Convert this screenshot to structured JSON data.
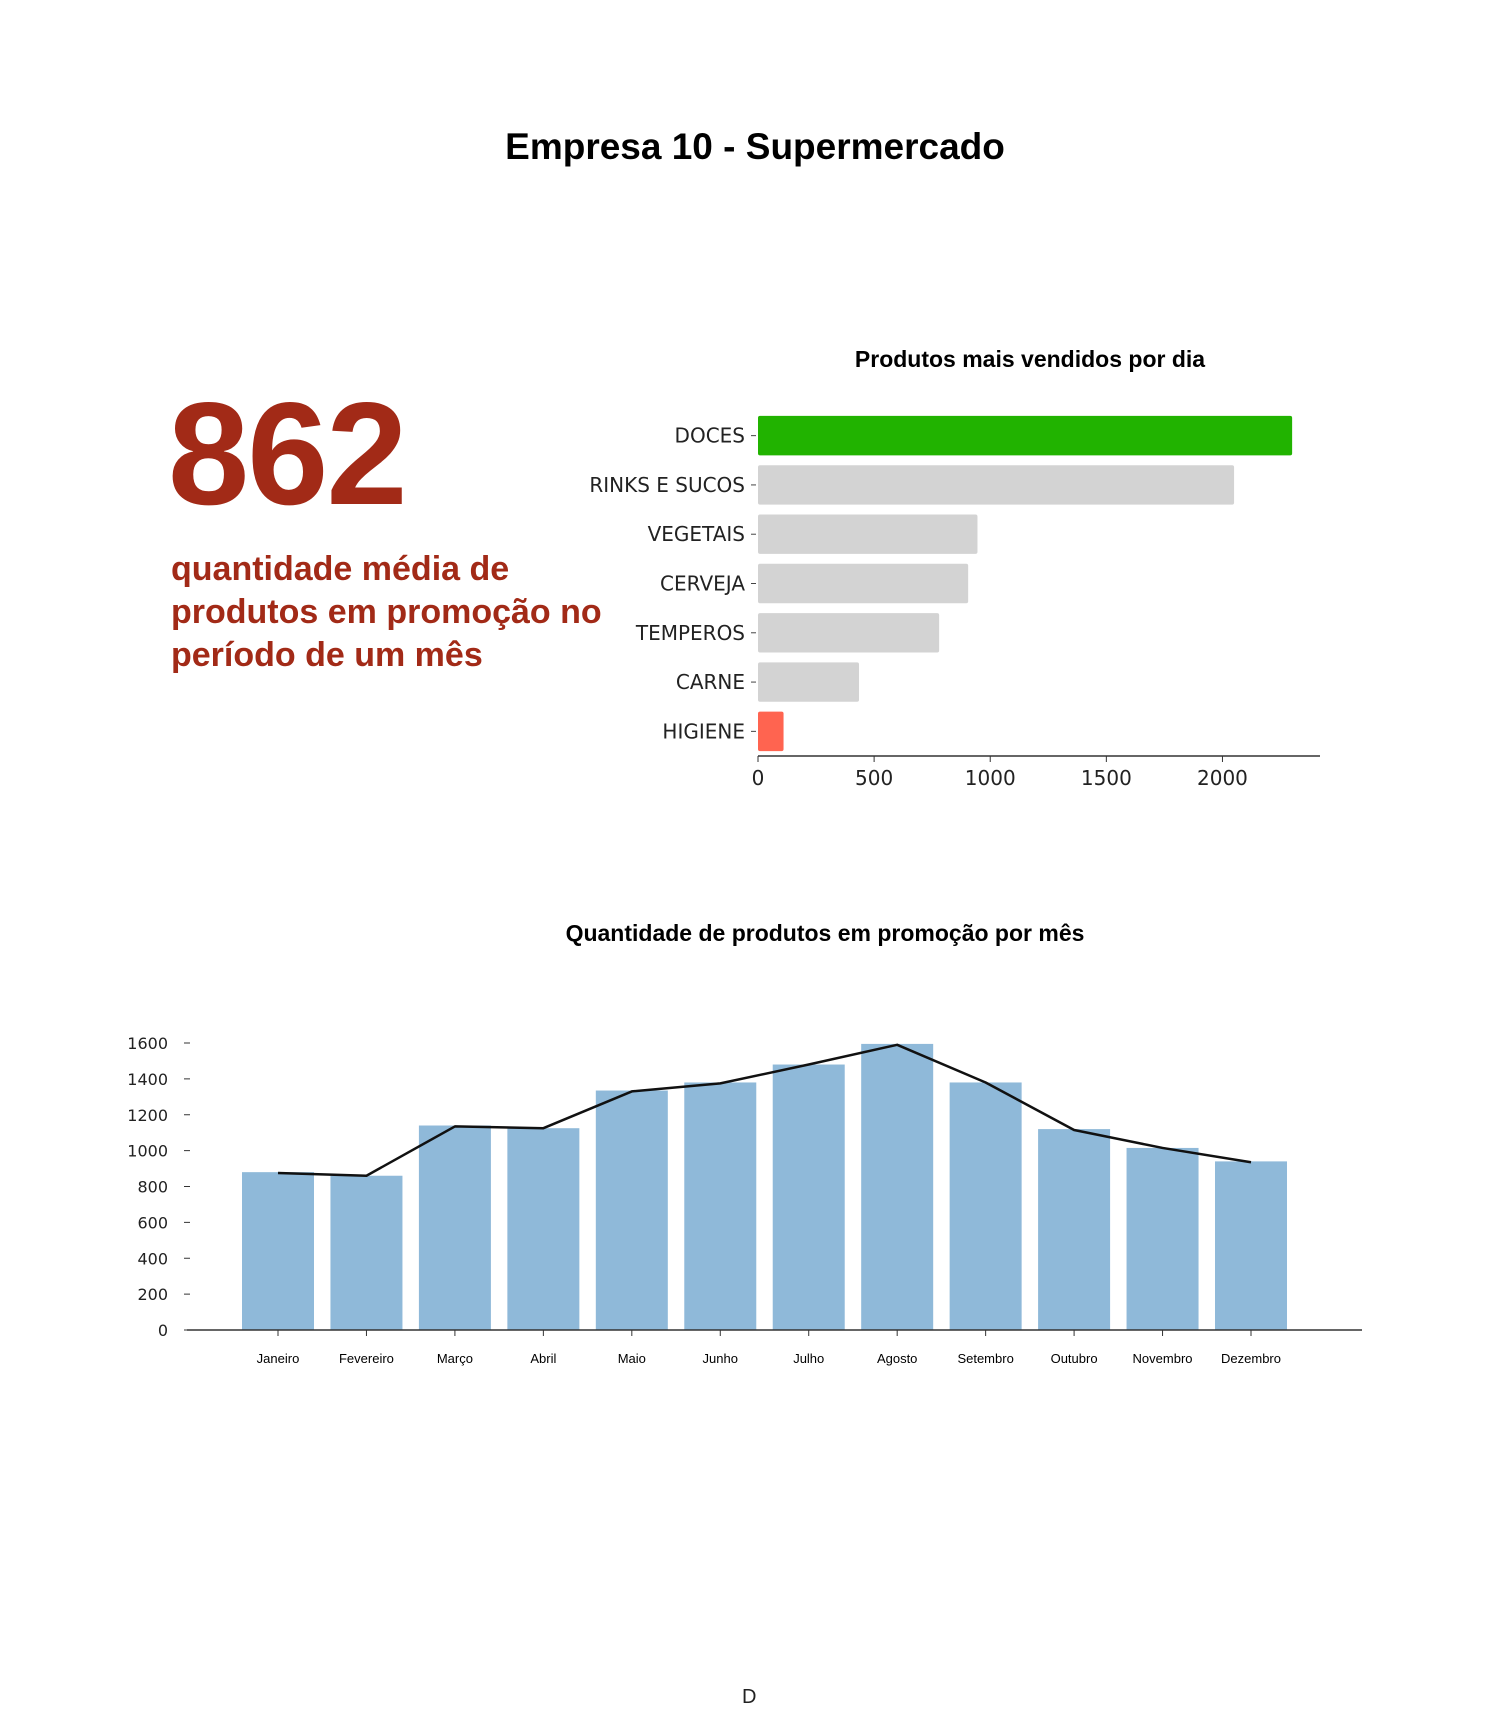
{
  "page": {
    "title": "Empresa 10 - Supermercado",
    "footer_letter": "D"
  },
  "kpi": {
    "value": "862",
    "caption": "quantidade média de produtos em promoção no período de um mês",
    "color": "#a22a17"
  },
  "chart_data": [
    {
      "type": "bar",
      "orientation": "horizontal",
      "title": "Produtos mais vendidos por dia",
      "categories": [
        "DOCES",
        "RINKS E SUCOS",
        "VEGETAIS",
        "CERVEJA",
        "TEMPEROS",
        "CARNE",
        "HIGIENE"
      ],
      "values": [
        2300,
        2050,
        945,
        905,
        780,
        435,
        110
      ],
      "colors": [
        "#21b300",
        "#d3d3d3",
        "#d3d3d3",
        "#d3d3d3",
        "#d3d3d3",
        "#d3d3d3",
        "#ff6450"
      ],
      "xticks": [
        0,
        500,
        1000,
        1500,
        2000
      ],
      "xlim": [
        0,
        2420
      ],
      "xlabel": "",
      "ylabel": "",
      "grid": false
    },
    {
      "type": "bar",
      "title": "Quantidade de produtos em promoção por mês",
      "categories": [
        "Janeiro",
        "Fevereiro",
        "Março",
        "Abril",
        "Maio",
        "Junho",
        "Julho",
        "Agosto",
        "Setembro",
        "Outubro",
        "Novembro",
        "Dezembro"
      ],
      "values": [
        880,
        860,
        1140,
        1125,
        1335,
        1380,
        1480,
        1595,
        1380,
        1120,
        1015,
        940
      ],
      "line_values": [
        875,
        860,
        1135,
        1125,
        1330,
        1375,
        1480,
        1590,
        1380,
        1115,
        1015,
        935
      ],
      "bar_color": "#8fb9d9",
      "line_color": "#111111",
      "yticks": [
        0,
        200,
        400,
        600,
        800,
        1000,
        1200,
        1400,
        1600
      ],
      "ylim": [
        0,
        1600
      ],
      "xlabel": "",
      "ylabel": "",
      "grid": false
    }
  ]
}
